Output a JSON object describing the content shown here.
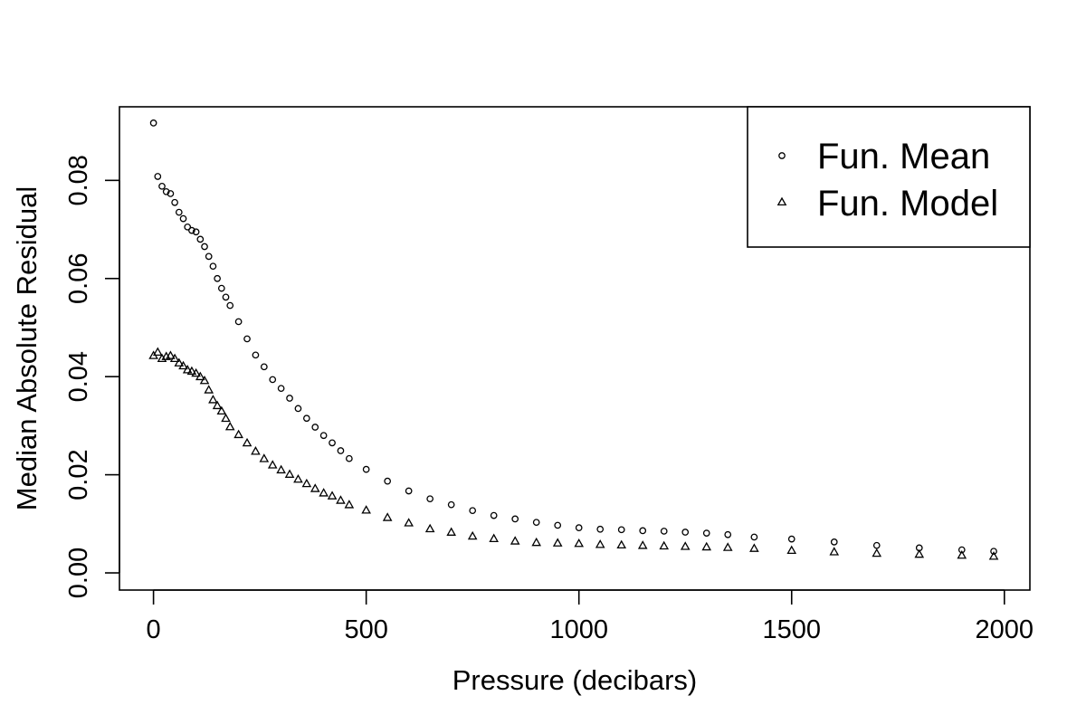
{
  "chart_data": {
    "type": "scatter",
    "title": "",
    "xlabel": "Pressure (decibars)",
    "ylabel": "Median Absolute Residual",
    "xlim": [
      -80,
      2060
    ],
    "ylim": [
      -0.0035,
      0.095
    ],
    "x_ticks": [
      0,
      500,
      1000,
      1500,
      2000
    ],
    "x_tick_labels": [
      "0",
      "500",
      "1000",
      "1500",
      "2000"
    ],
    "y_ticks": [
      0,
      0.02,
      0.04,
      0.06,
      0.08
    ],
    "y_tick_labels": [
      "0.00",
      "0.02",
      "0.04",
      "0.06",
      "0.08"
    ],
    "grid": false,
    "legend_position": "top-right",
    "series": [
      {
        "name": "Fun. Mean",
        "marker": "circle",
        "x": [
          0,
          10,
          20,
          30,
          40,
          50,
          60,
          70,
          80,
          90,
          100,
          110,
          120,
          130,
          140,
          150,
          160,
          170,
          180,
          200,
          220,
          240,
          260,
          280,
          300,
          320,
          340,
          360,
          380,
          400,
          420,
          440,
          460,
          500,
          550,
          600,
          650,
          700,
          750,
          800,
          850,
          900,
          950,
          1000,
          1050,
          1100,
          1150,
          1200,
          1250,
          1300,
          1350,
          1412,
          1500,
          1600,
          1700,
          1800,
          1900,
          1975
        ],
        "y": [
          0.0917,
          0.0808,
          0.0788,
          0.0777,
          0.0773,
          0.0755,
          0.0735,
          0.0722,
          0.0705,
          0.0698,
          0.0695,
          0.068,
          0.0665,
          0.0645,
          0.0625,
          0.06,
          0.058,
          0.0562,
          0.0545,
          0.0512,
          0.0477,
          0.0444,
          0.042,
          0.0394,
          0.0376,
          0.0356,
          0.0335,
          0.0315,
          0.0297,
          0.028,
          0.0265,
          0.0249,
          0.0233,
          0.0211,
          0.0187,
          0.0167,
          0.0151,
          0.0139,
          0.0127,
          0.0117,
          0.011,
          0.0103,
          0.0097,
          0.0092,
          0.0089,
          0.0088,
          0.0086,
          0.0085,
          0.0083,
          0.0081,
          0.0078,
          0.0073,
          0.0069,
          0.0063,
          0.0056,
          0.0051,
          0.0047,
          0.0044
        ]
      },
      {
        "name": "Fun. Model",
        "marker": "triangle",
        "x": [
          0,
          10,
          20,
          30,
          40,
          50,
          60,
          70,
          80,
          90,
          100,
          110,
          120,
          130,
          140,
          150,
          160,
          170,
          180,
          200,
          220,
          240,
          260,
          280,
          300,
          320,
          340,
          360,
          380,
          400,
          420,
          440,
          460,
          500,
          550,
          600,
          650,
          700,
          750,
          800,
          850,
          900,
          950,
          1000,
          1050,
          1100,
          1150,
          1200,
          1250,
          1300,
          1350,
          1412,
          1500,
          1600,
          1700,
          1800,
          1900,
          1975
        ],
        "y": [
          0.0443,
          0.045,
          0.0437,
          0.0441,
          0.0443,
          0.0437,
          0.0428,
          0.0422,
          0.0414,
          0.0411,
          0.0407,
          0.04,
          0.0392,
          0.0373,
          0.0353,
          0.0341,
          0.033,
          0.0315,
          0.0298,
          0.0282,
          0.0265,
          0.0248,
          0.0233,
          0.022,
          0.021,
          0.0201,
          0.0191,
          0.0182,
          0.0172,
          0.0163,
          0.0157,
          0.0148,
          0.0139,
          0.0128,
          0.0113,
          0.0102,
          0.009,
          0.0083,
          0.0075,
          0.007,
          0.0065,
          0.0062,
          0.0061,
          0.006,
          0.0058,
          0.0057,
          0.0056,
          0.0055,
          0.0054,
          0.0053,
          0.0052,
          0.005,
          0.0046,
          0.0043,
          0.004,
          0.0038,
          0.0036,
          0.0034
        ]
      }
    ]
  }
}
